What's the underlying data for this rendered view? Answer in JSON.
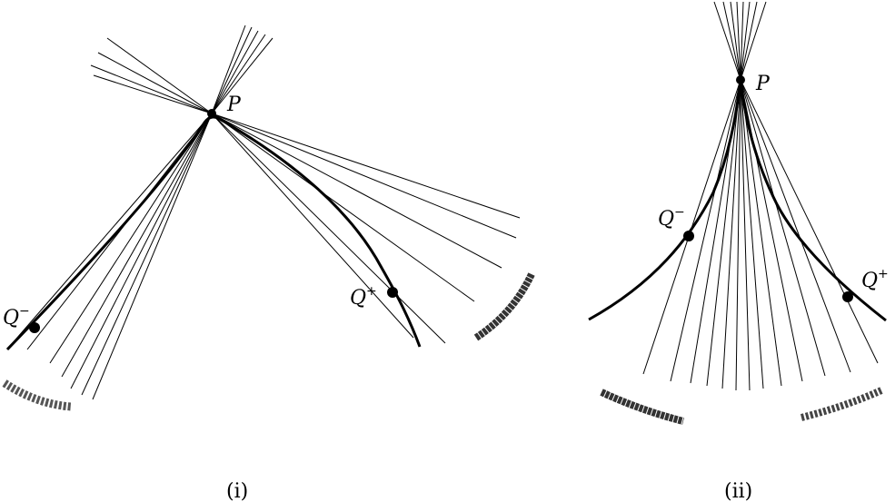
{
  "colors": {
    "ink": "#000000",
    "smudge": "#444444",
    "background": "#ffffff"
  },
  "figures": [
    {
      "id": "i",
      "caption": "(i)",
      "point_label": "P",
      "q_minus_label": "Q",
      "q_minus_sup": "−",
      "q_plus_label": "Q",
      "q_plus_sup": "+"
    },
    {
      "id": "ii",
      "caption": "(ii)",
      "point_label": "P",
      "q_minus_label": "Q",
      "q_minus_sup": "−",
      "q_plus_label": "Q",
      "q_plus_sup": "+"
    }
  ]
}
